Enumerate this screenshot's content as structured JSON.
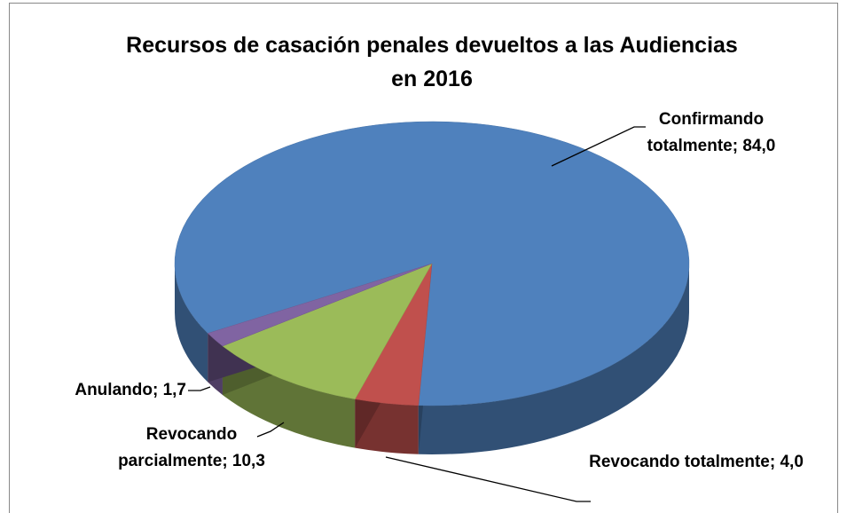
{
  "chart_data": {
    "type": "pie3d",
    "title": "Recursos de casación penales devueltos a las Audiencias en 2016",
    "categories": [
      "Confirmando totalmente",
      "Revocando totalmente",
      "Revocando parcialmente",
      "Anulando"
    ],
    "values": [
      84.0,
      4.0,
      10.3,
      1.7
    ],
    "value_labels": [
      "84,0",
      "4,0",
      "10,3",
      "1,7"
    ],
    "separator": "; ",
    "colors": [
      "#4f81bd",
      "#c0504d",
      "#9bbb59",
      "#8064a2"
    ]
  }
}
